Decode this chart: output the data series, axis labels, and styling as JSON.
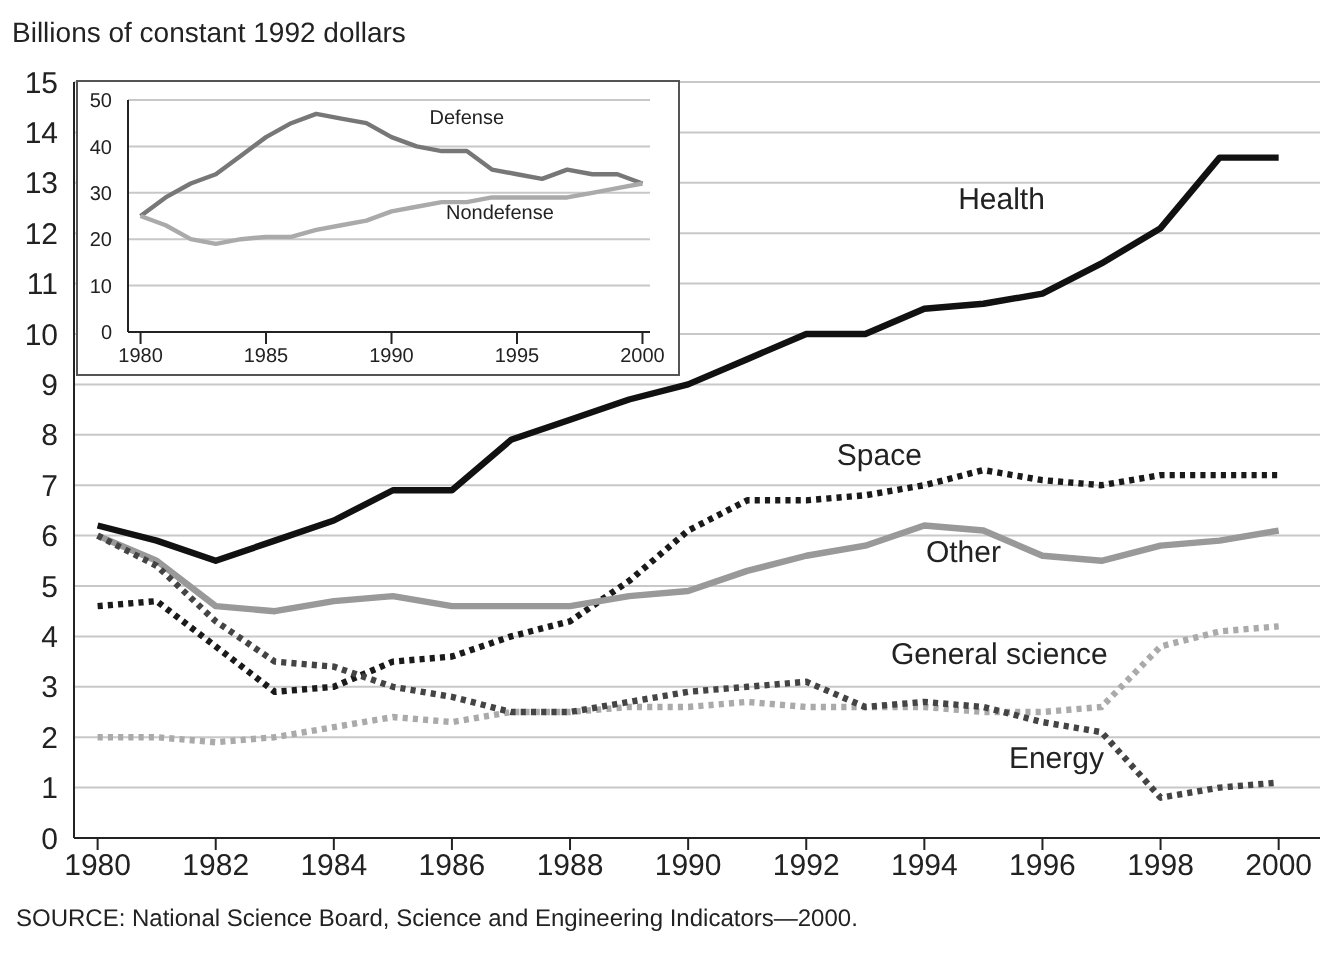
{
  "chart_data": [
    {
      "type": "line",
      "ylabel": "Billions of constant 1992 dollars",
      "x": [
        1980,
        1981,
        1982,
        1983,
        1984,
        1985,
        1986,
        1987,
        1988,
        1989,
        1990,
        1991,
        1992,
        1993,
        1994,
        1995,
        1996,
        1997,
        1998,
        1999,
        2000
      ],
      "series": [
        {
          "name": "Health",
          "color": "#111111",
          "line_style": "solid",
          "values": [
            6.2,
            5.9,
            5.5,
            5.9,
            6.3,
            6.9,
            6.9,
            7.9,
            8.3,
            8.7,
            9.0,
            9.5,
            10.0,
            10.0,
            10.5,
            10.6,
            10.8,
            11.4,
            12.1,
            13.5,
            13.5
          ]
        },
        {
          "name": "Space",
          "color": "#1a1a1a",
          "line_style": "dotted",
          "values": [
            4.6,
            4.7,
            3.8,
            2.9,
            3.0,
            3.5,
            3.6,
            4.0,
            4.3,
            5.1,
            6.1,
            6.7,
            6.7,
            6.8,
            7.0,
            7.3,
            7.1,
            7.0,
            7.2,
            7.2,
            7.2
          ]
        },
        {
          "name": "Other",
          "color": "#999999",
          "line_style": "solid",
          "values": [
            6.0,
            5.5,
            4.6,
            4.5,
            4.7,
            4.8,
            4.6,
            4.6,
            4.6,
            4.8,
            4.9,
            5.3,
            5.6,
            5.8,
            6.2,
            6.1,
            5.6,
            5.5,
            5.8,
            5.9,
            6.1
          ]
        },
        {
          "name": "General science",
          "color": "#aaaaaa",
          "line_style": "dotted",
          "values": [
            2.0,
            2.0,
            1.9,
            2.0,
            2.2,
            2.4,
            2.3,
            2.5,
            2.5,
            2.6,
            2.6,
            2.7,
            2.6,
            2.6,
            2.6,
            2.5,
            2.5,
            2.6,
            3.8,
            4.1,
            4.2
          ]
        },
        {
          "name": "Energy",
          "color": "#444444",
          "line_style": "dotted",
          "values": [
            6.0,
            5.4,
            4.3,
            3.5,
            3.4,
            3.0,
            2.8,
            2.5,
            2.5,
            2.7,
            2.9,
            3.0,
            3.1,
            2.6,
            2.7,
            2.6,
            2.3,
            2.1,
            0.8,
            1.0,
            1.1
          ]
        }
      ],
      "xlim": [
        1979.6,
        2000.7
      ],
      "xticks": [
        1980,
        1982,
        1984,
        1986,
        1988,
        1990,
        1992,
        1994,
        1996,
        1998,
        2000
      ],
      "ylim": [
        0,
        15
      ],
      "yticks": [
        0,
        1,
        2,
        3,
        4,
        5,
        6,
        7,
        8,
        9,
        10,
        11,
        12,
        13,
        14,
        15
      ],
      "grid": "y",
      "annotations": [
        "SOURCE: National Science Board, Science and Engineering Indicators—2000."
      ]
    },
    {
      "type": "line",
      "x": [
        1980,
        1981,
        1982,
        1983,
        1984,
        1985,
        1986,
        1987,
        1988,
        1989,
        1990,
        1991,
        1992,
        1993,
        1994,
        1995,
        1996,
        1997,
        1998,
        1999,
        2000
      ],
      "series": [
        {
          "name": "Defense",
          "color": "#777777",
          "line_style": "solid",
          "values": [
            25,
            29,
            32,
            34,
            38,
            42,
            45,
            47,
            46,
            45,
            42,
            40,
            39,
            39,
            35,
            34,
            33,
            35,
            34,
            34,
            32
          ]
        },
        {
          "name": "Nondefense",
          "color": "#aaaaaa",
          "line_style": "solid",
          "values": [
            25,
            23,
            20,
            19,
            20,
            20.5,
            20.5,
            22,
            23,
            24,
            26,
            27,
            28,
            28,
            29,
            29,
            29,
            29,
            30,
            31,
            32
          ]
        }
      ],
      "xlim": [
        1979.5,
        2000.3
      ],
      "xticks": [
        1980,
        1985,
        1990,
        1995,
        2000
      ],
      "ylim": [
        0,
        50
      ],
      "yticks": [
        0,
        10,
        20,
        30,
        40,
        50
      ],
      "grid": "y"
    }
  ]
}
